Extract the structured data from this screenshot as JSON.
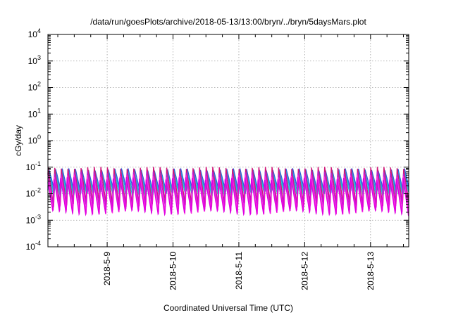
{
  "chart_data": {
    "type": "line",
    "title": "/data/run/goesPlots/archive/2018-05-13/13:00/bryn/../bryn/5daysMars.plot",
    "xlabel": "Coordinated Universal Time (UTC)",
    "ylabel": "cGy/day",
    "yscale": "log",
    "ylim_exponents": [
      -4,
      4
    ],
    "ytick_exponents": [
      -4,
      -3,
      -2,
      -1,
      0,
      1,
      2,
      3,
      4
    ],
    "ytick_base": "10",
    "xlim_days": [
      8.1,
      13.58
    ],
    "xtick_labels": [
      "2018-5-9",
      "2018-5-10",
      "2018-5-11",
      "2018-5-12",
      "2018-5-13"
    ],
    "xtick_days": [
      9,
      10,
      11,
      12,
      13
    ],
    "grid": true,
    "sawtooth_period_days": 0.1,
    "series": [
      {
        "color": "#2f5fd6",
        "peak": 0.085,
        "trough": 0.012
      },
      {
        "color": "#1f9fe0",
        "peak": 0.07,
        "trough": 0.01
      },
      {
        "color": "#20c8c8",
        "peak": 0.06,
        "trough": 0.008
      },
      {
        "color": "#d01878",
        "peak": 0.095,
        "trough": 0.0035
      },
      {
        "color": "#c020d0",
        "peak": 0.065,
        "trough": 0.0028
      },
      {
        "color": "#ff30e0",
        "peak": 0.05,
        "trough": 0.002
      },
      {
        "color": "#e000e0",
        "peak": 0.04,
        "trough": 0.0018
      }
    ]
  }
}
